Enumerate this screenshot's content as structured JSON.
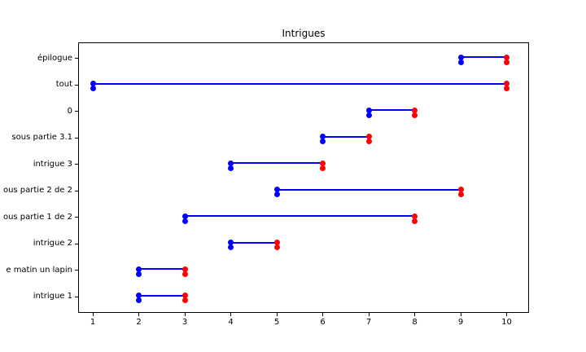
{
  "chart_data": {
    "type": "gantt",
    "title": "Intrigues",
    "xlabel": "",
    "ylabel": "",
    "grid": false,
    "legend": false,
    "x_ticks": [
      1,
      2,
      3,
      4,
      5,
      6,
      7,
      8,
      9,
      10
    ],
    "xlim": [
      0.7,
      10.5
    ],
    "rows_top_to_bottom": [
      {
        "label": "épilogue",
        "start": 9,
        "end": 10
      },
      {
        "label": "tout",
        "start": 1,
        "end": 10
      },
      {
        "label": "0",
        "start": 7,
        "end": 8
      },
      {
        "label": "sous partie 3.1",
        "start": 6,
        "end": 7
      },
      {
        "label": "intrigue 3",
        "start": 4,
        "end": 6
      },
      {
        "label": "ous partie 2 de 2",
        "start": 5,
        "end": 9
      },
      {
        "label": "ous partie 1 de 2",
        "start": 3,
        "end": 8
      },
      {
        "label": "intrigue 2",
        "start": 4,
        "end": 5
      },
      {
        "label": "e matin un lapin",
        "start": 2,
        "end": 3
      },
      {
        "label": "intrigue 1",
        "start": 2,
        "end": 3
      }
    ],
    "marker_note": "two stacked circular dots at each endpoint, line through upper dot",
    "colors": {
      "start_marker": "#0000ff",
      "end_marker": "#ff0000",
      "line": "#0000ff",
      "axis": "#000000",
      "background": "#ffffff",
      "text": "#000000"
    }
  }
}
